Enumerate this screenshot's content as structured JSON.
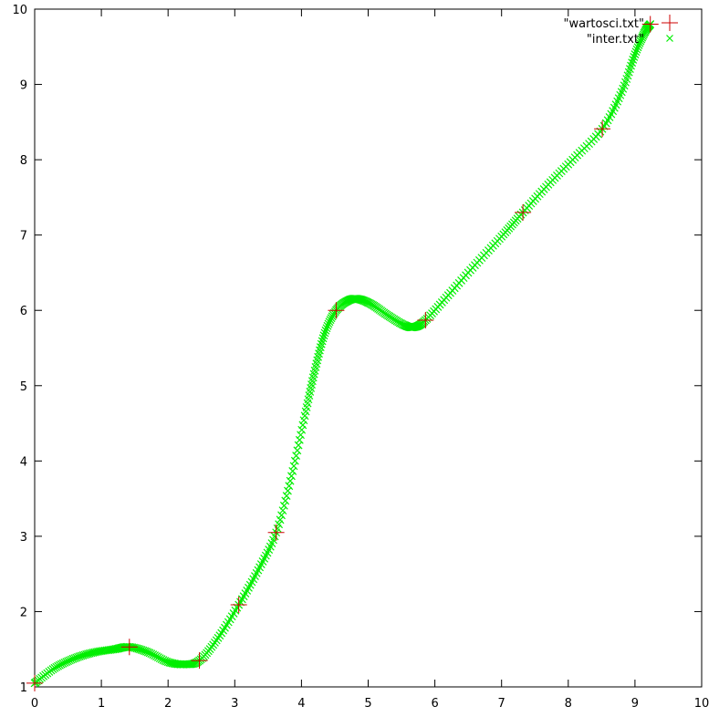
{
  "chart_data": {
    "type": "scatter",
    "title": "",
    "xlabel": "",
    "ylabel": "",
    "xlim": [
      0,
      10
    ],
    "ylim": [
      1,
      10
    ],
    "grid": false,
    "legend_position": "top-right",
    "x_ticks": [
      "0",
      "1",
      "2",
      "3",
      "4",
      "5",
      "6",
      "7",
      "8",
      "9",
      "10"
    ],
    "y_ticks": [
      "1",
      "2",
      "3",
      "4",
      "5",
      "6",
      "7",
      "8",
      "9",
      "10"
    ],
    "series": [
      {
        "name": "\"wartosci.txt\"",
        "marker": "plus",
        "color": "#cc0000",
        "points": [
          [
            0,
            1.05
          ],
          [
            1.42,
            1.53
          ],
          [
            2.47,
            1.35
          ],
          [
            3.06,
            2.09
          ],
          [
            3.62,
            3.05
          ],
          [
            4.52,
            6.0
          ],
          [
            5.86,
            5.87
          ],
          [
            7.32,
            7.3
          ],
          [
            8.51,
            8.41
          ],
          [
            9.23,
            9.8
          ]
        ]
      },
      {
        "name": "\"inter.txt\"",
        "marker": "cross",
        "color": "#00ee00",
        "points": [
          [
            0,
            1.05
          ],
          [
            0.3,
            1.25
          ],
          [
            0.6,
            1.38
          ],
          [
            0.9,
            1.46
          ],
          [
            1.2,
            1.5
          ],
          [
            1.42,
            1.53
          ],
          [
            1.7,
            1.46
          ],
          [
            2.0,
            1.33
          ],
          [
            2.25,
            1.3
          ],
          [
            2.47,
            1.35
          ],
          [
            2.75,
            1.65
          ],
          [
            3.06,
            2.09
          ],
          [
            3.35,
            2.55
          ],
          [
            3.62,
            3.05
          ],
          [
            3.85,
            3.8
          ],
          [
            4.05,
            4.6
          ],
          [
            4.2,
            5.2
          ],
          [
            4.35,
            5.7
          ],
          [
            4.52,
            6.0
          ],
          [
            4.7,
            6.13
          ],
          [
            4.85,
            6.15
          ],
          [
            5.05,
            6.08
          ],
          [
            5.3,
            5.93
          ],
          [
            5.55,
            5.8
          ],
          [
            5.7,
            5.78
          ],
          [
            5.86,
            5.87
          ],
          [
            6.2,
            6.2
          ],
          [
            6.6,
            6.6
          ],
          [
            7.0,
            6.98
          ],
          [
            7.32,
            7.3
          ],
          [
            7.7,
            7.67
          ],
          [
            8.1,
            8.03
          ],
          [
            8.51,
            8.41
          ],
          [
            8.8,
            8.9
          ],
          [
            9.0,
            9.4
          ],
          [
            9.15,
            9.7
          ],
          [
            9.23,
            9.8
          ]
        ]
      }
    ]
  }
}
